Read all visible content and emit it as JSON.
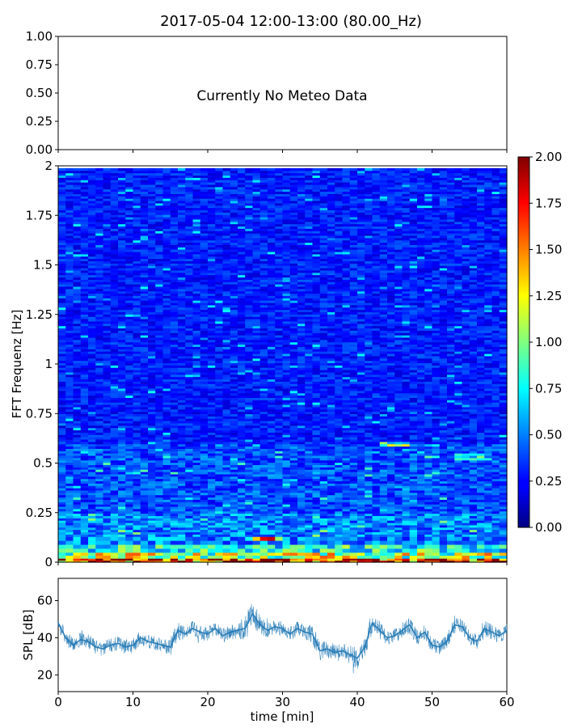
{
  "figure_title": "2017-05-04 12:00-13:00 (80.00_Hz)",
  "chart_data": [
    {
      "type": "line",
      "panel": "meteo",
      "annotation": "Currently No Meteo Data",
      "xlabel": "",
      "ylabel": "",
      "xlim": [
        0,
        60
      ],
      "ylim": [
        0,
        1
      ],
      "yticks": [
        "0.00",
        "0.25",
        "0.50",
        "0.75",
        "1.00"
      ],
      "grid": false,
      "series": []
    },
    {
      "type": "heatmap",
      "panel": "spectrogram",
      "xlabel": "",
      "ylabel": "FFT Frequenz [Hz]",
      "xlim": [
        0,
        60
      ],
      "ylim": [
        0,
        2
      ],
      "yticks": [
        "0",
        "0.25",
        "0.5",
        "0.75",
        "1",
        "1.25",
        "1.5",
        "1.75",
        "2"
      ],
      "colormap": "jet",
      "colorbar": {
        "range": [
          0,
          2
        ],
        "ticks": [
          "0.00",
          "0.25",
          "0.50",
          "0.75",
          "1.00",
          "1.25",
          "1.50",
          "1.75",
          "2.00"
        ]
      },
      "time_columns": 60,
      "approx_intensity_by_frequency": [
        {
          "f_from": 0.0,
          "f_to": 0.02,
          "level": 1.8
        },
        {
          "f_from": 0.02,
          "f_to": 0.05,
          "level": 1.1
        },
        {
          "f_from": 0.05,
          "f_to": 0.1,
          "level": 0.8
        },
        {
          "f_from": 0.1,
          "f_to": 0.25,
          "level": 0.5
        },
        {
          "f_from": 0.25,
          "f_to": 0.6,
          "level": 0.4
        },
        {
          "f_from": 0.6,
          "f_to": 2.0,
          "level": 0.3
        }
      ],
      "notable_features": [
        {
          "t_from": 43,
          "t_to": 47,
          "f": 0.6,
          "level": 0.9
        },
        {
          "t_from": 53,
          "t_to": 58,
          "f": 0.53,
          "level": 0.75
        },
        {
          "t_from": 25,
          "t_to": 30,
          "f": 0.12,
          "level": 1.3
        }
      ]
    },
    {
      "type": "line",
      "panel": "spl",
      "xlabel": "time [min]",
      "ylabel": "SPL [dB]",
      "xlim": [
        0,
        60
      ],
      "ylim": [
        11,
        72
      ],
      "xticks": [
        "0",
        "10",
        "20",
        "30",
        "40",
        "50",
        "60"
      ],
      "yticks": [
        "20",
        "40",
        "60"
      ],
      "color": "#1f77b4",
      "grid": false,
      "series": [
        {
          "x": [
            0,
            1,
            2,
            3,
            4,
            5,
            6,
            7,
            8,
            9,
            10,
            11,
            12,
            13,
            14,
            15,
            16,
            17,
            18,
            19,
            20,
            21,
            22,
            23,
            24,
            25,
            26,
            27,
            28,
            29,
            30,
            31,
            32,
            33,
            34,
            35,
            36,
            37,
            38,
            39,
            40,
            41,
            42,
            43,
            44,
            45,
            46,
            47,
            48,
            49,
            50,
            51,
            52,
            53,
            54,
            55,
            56,
            57,
            58,
            59,
            60
          ],
          "mean": [
            48,
            40,
            36,
            39,
            38,
            35,
            34,
            36,
            37,
            35,
            36,
            40,
            38,
            37,
            36,
            35,
            44,
            42,
            45,
            43,
            42,
            45,
            41,
            43,
            44,
            45,
            53,
            47,
            44,
            46,
            45,
            42,
            45,
            43,
            42,
            33,
            34,
            32,
            33,
            31,
            29,
            35,
            48,
            44,
            40,
            41,
            44,
            47,
            40,
            43,
            36,
            35,
            38,
            47,
            46,
            40,
            38,
            45,
            43,
            41,
            44
          ],
          "spread": [
            4,
            4,
            4,
            4,
            4,
            4,
            4,
            4,
            4,
            4,
            4,
            4,
            4,
            4,
            4,
            5,
            5,
            4,
            4,
            4,
            4,
            4,
            4,
            4,
            5,
            6,
            9,
            5,
            4,
            4,
            4,
            4,
            4,
            4,
            5,
            5,
            5,
            5,
            5,
            5,
            6,
            5,
            7,
            5,
            4,
            4,
            4,
            5,
            4,
            4,
            4,
            4,
            4,
            5,
            4,
            4,
            4,
            5,
            4,
            4,
            4
          ]
        }
      ]
    }
  ]
}
